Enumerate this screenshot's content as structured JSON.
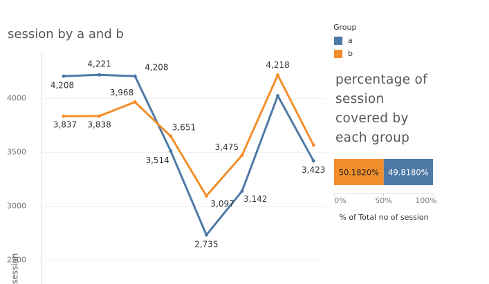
{
  "chart_data": [
    {
      "type": "line",
      "title": "session by a and b",
      "y_label": "session",
      "categories": [
        null,
        null,
        null,
        null,
        null,
        null,
        null,
        null
      ],
      "ylim": [
        2280,
        4530
      ],
      "yticks": [
        2500,
        3000,
        3500,
        4000
      ],
      "grid": true,
      "legend_title": "Group",
      "series": [
        {
          "name": "a",
          "color": "#4e79a7",
          "values": [
            4208,
            4221,
            4208,
            3514,
            2735,
            3142,
            4026,
            3423
          ],
          "value_labels": [
            "4,208",
            "4,221",
            "4,208",
            "3,514",
            "2,735",
            "3,142",
            null,
            "3,423"
          ]
        },
        {
          "name": "b",
          "color": "#f28e2b",
          "values": [
            3837,
            3838,
            3968,
            3651,
            3097,
            3475,
            4218,
            3570
          ],
          "value_labels": [
            "3,837",
            "3,838",
            "3,968",
            "3,651",
            "3,097",
            "3,475",
            "4,218",
            null
          ]
        }
      ]
    },
    {
      "type": "stacked_bar",
      "title": "percentage of session covered by each group",
      "x_label": "% of Total no of session",
      "xlim": [
        0,
        100
      ],
      "xticks": [
        {
          "value": 0,
          "label": "0%"
        },
        {
          "value": 50,
          "label": "50%"
        },
        {
          "value": 100,
          "label": "100%"
        }
      ],
      "series": [
        {
          "color": "#f28e2b",
          "values": [
            50.182
          ],
          "value_labels": [
            "50.1820%"
          ]
        },
        {
          "color": "#4e79a7",
          "values": [
            49.818
          ],
          "value_labels": [
            "49.8180%"
          ]
        }
      ]
    }
  ]
}
